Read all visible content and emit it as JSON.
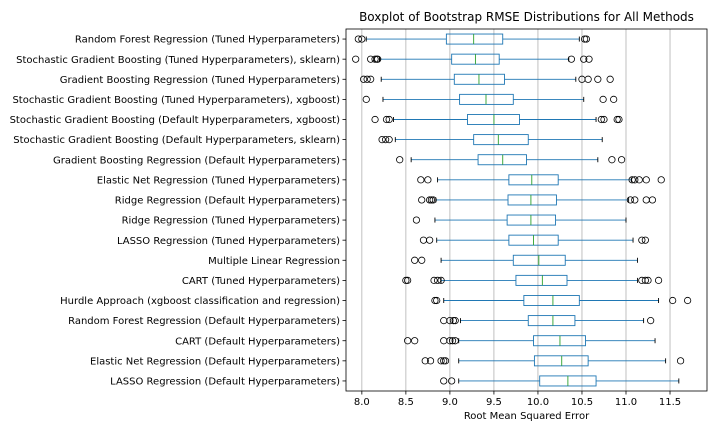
{
  "chart_data": {
    "type": "boxplot",
    "title": "Boxplot of Bootstrap RMSE Distributions for All Methods",
    "xlabel": "Root Mean Squared Error",
    "xlim": [
      7.82,
      11.92
    ],
    "xticks": [
      8.0,
      8.5,
      9.0,
      9.5,
      10.0,
      10.5,
      11.0,
      11.5
    ],
    "xtick_labels": [
      "8.0",
      "8.5",
      "9.0",
      "9.5",
      "10.0",
      "10.5",
      "11.0",
      "11.5"
    ],
    "grid": "vertical",
    "colors": {
      "box": "#1f77b4",
      "median": "#2ca02c",
      "grid": "#b0b0b0",
      "axis": "#000000"
    },
    "series": [
      {
        "name": "Random Forest Regression (Tuned Hyperparameters)",
        "whislo": 8.05,
        "q1": 8.96,
        "median": 9.27,
        "q3": 9.6,
        "whishi": 10.47,
        "fliers": [
          7.96,
          8.0,
          10.53,
          10.55
        ]
      },
      {
        "name": "Stochastic Gradient Boosting (Tuned Hyperparameters), sklearn)",
        "whislo": 8.2,
        "q1": 9.02,
        "median": 9.29,
        "q3": 9.56,
        "whishi": 10.35,
        "fliers": [
          7.93,
          8.1,
          8.15,
          8.17,
          8.18,
          10.38,
          10.52,
          10.58
        ]
      },
      {
        "name": "Gradient Boosting Regression (Tuned Hyperparameters)",
        "whislo": 8.22,
        "q1": 9.05,
        "median": 9.33,
        "q3": 9.62,
        "whishi": 10.43,
        "fliers": [
          8.02,
          8.06,
          8.1,
          10.5,
          10.57,
          10.68,
          10.82
        ]
      },
      {
        "name": "Stochastic Gradient Boosting (Tuned Hyperparameters), xgboost)",
        "whislo": 8.24,
        "q1": 9.11,
        "median": 9.41,
        "q3": 9.72,
        "whishi": 10.52,
        "fliers": [
          8.05,
          10.74,
          10.86
        ]
      },
      {
        "name": "Stochastic Gradient Boosting (Default Hyperparameters, xgboost)",
        "whislo": 8.36,
        "q1": 9.2,
        "median": 9.5,
        "q3": 9.79,
        "whishi": 10.66,
        "fliers": [
          8.15,
          8.28,
          8.31,
          10.72,
          10.75,
          10.9,
          10.92
        ]
      },
      {
        "name": "Stochastic Gradient Boosting (Default Hyperparameters, sklearn)",
        "whislo": 8.38,
        "q1": 9.27,
        "median": 9.55,
        "q3": 9.89,
        "whishi": 10.73,
        "fliers": [
          8.23,
          8.27,
          8.31
        ]
      },
      {
        "name": "Gradient Boosting Regression (Default Hyperparameters)",
        "whislo": 8.56,
        "q1": 9.32,
        "median": 9.6,
        "q3": 9.87,
        "whishi": 10.68,
        "fliers": [
          8.43,
          10.84,
          10.95
        ]
      },
      {
        "name": "Elastic Net Regression (Tuned Hyperparameters)",
        "whislo": 8.86,
        "q1": 9.67,
        "median": 9.93,
        "q3": 10.23,
        "whishi": 11.06,
        "fliers": [
          8.67,
          8.75,
          11.07,
          11.1,
          11.15,
          11.23,
          11.4
        ]
      },
      {
        "name": "Ridge Regression (Default Hyperparameters)",
        "whislo": 8.84,
        "q1": 9.66,
        "median": 9.92,
        "q3": 10.21,
        "whishi": 11.03,
        "fliers": [
          8.68,
          8.77,
          8.79,
          8.81,
          11.05,
          11.1,
          11.23,
          11.3
        ]
      },
      {
        "name": "Ridge Regression (Tuned Hyperparameters)",
        "whislo": 8.83,
        "q1": 9.65,
        "median": 9.92,
        "q3": 10.2,
        "whishi": 11.0,
        "fliers": [
          8.62
        ]
      },
      {
        "name": "LASSO Regression (Tuned Hyperparameters)",
        "whislo": 8.85,
        "q1": 9.67,
        "median": 9.95,
        "q3": 10.23,
        "whishi": 11.08,
        "fliers": [
          8.7,
          8.77,
          11.18,
          11.22
        ]
      },
      {
        "name": "Multiple Linear Regression",
        "whislo": 8.9,
        "q1": 9.72,
        "median": 10.01,
        "q3": 10.31,
        "whishi": 11.13,
        "fliers": [
          8.6,
          8.68
        ]
      },
      {
        "name": "CART (Tuned Hyperparameters)",
        "whislo": 8.9,
        "q1": 9.75,
        "median": 10.05,
        "q3": 10.33,
        "whishi": 11.13,
        "fliers": [
          8.5,
          8.52,
          8.82,
          8.86,
          8.9,
          11.18,
          11.22,
          11.25,
          11.37
        ]
      },
      {
        "name": "Hurdle Approach (xgboost classification and regression)",
        "whislo": 8.93,
        "q1": 9.84,
        "median": 10.17,
        "q3": 10.47,
        "whishi": 11.37,
        "fliers": [
          8.83,
          8.85,
          11.53,
          11.7
        ]
      },
      {
        "name": "Random Forest Regression (Default Hyperparameters)",
        "whislo": 9.12,
        "q1": 9.89,
        "median": 10.17,
        "q3": 10.42,
        "whishi": 11.2,
        "fliers": [
          8.93,
          9.0,
          9.04,
          9.06,
          11.28
        ]
      },
      {
        "name": "CART (Default Hyperparameters)",
        "whislo": 9.1,
        "q1": 9.95,
        "median": 10.25,
        "q3": 10.54,
        "whishi": 11.33,
        "fliers": [
          8.52,
          8.6,
          8.93,
          9.0,
          9.03,
          9.06
        ]
      },
      {
        "name": "Elastic Net Regression (Default Hyperparameters)",
        "whislo": 9.1,
        "q1": 9.96,
        "median": 10.27,
        "q3": 10.57,
        "whishi": 11.45,
        "fliers": [
          8.72,
          8.78,
          8.9,
          8.93,
          8.95,
          11.62
        ]
      },
      {
        "name": "LASSO Regression (Default Hyperparameters)",
        "whislo": 9.1,
        "q1": 10.02,
        "median": 10.34,
        "q3": 10.66,
        "whishi": 11.6,
        "fliers": [
          8.93,
          9.02
        ]
      }
    ]
  }
}
